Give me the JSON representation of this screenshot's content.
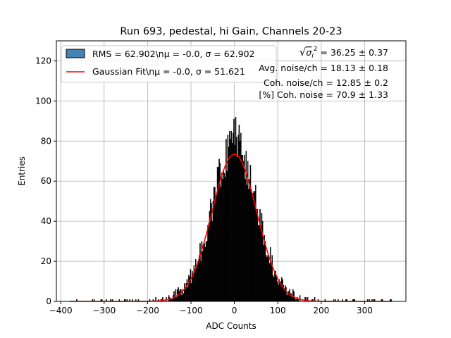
{
  "chart_data": {
    "type": "bar",
    "title": "Run 693, pedestal, hi Gain, Channels 20-23",
    "xlabel": "ADC Counts",
    "ylabel": "Entries",
    "xlim": [
      -410,
      395
    ],
    "ylim": [
      0,
      130
    ],
    "xticks": [
      -400,
      -300,
      -200,
      -100,
      0,
      100,
      200,
      300
    ],
    "xtick_labels": [
      "−400",
      "−300",
      "−200",
      "−100",
      "0",
      "100",
      "200",
      "300"
    ],
    "yticks": [
      0,
      20,
      40,
      60,
      80,
      100,
      120
    ],
    "ytick_labels": [
      "0",
      "20",
      "40",
      "60",
      "80",
      "100",
      "120"
    ],
    "grid": true,
    "legend_position": "top-left",
    "legend": [
      {
        "label": "RMS = 62.902\\n$\\mu$ = -0.0, $\\sigma$ = 62.902",
        "text": "RMS = 62.902\\nμ = -0.0, σ = 62.902",
        "style": "patch",
        "color": "#4682b4"
      },
      {
        "label": "Gaussian Fit\\n$\\mu$ = -0.0, $\\sigma$ = 51.621",
        "text": "Gaussian Fit\\nμ = -0.0, σ = 51.621",
        "style": "line",
        "color": "#ff0000"
      }
    ],
    "annotations": [
      {
        "id": "total",
        "sqrt_symbol": "√",
        "sigma": "σ",
        "sub": "i",
        "sup": "2",
        "value": " = 36.25 ± 0.37"
      },
      {
        "id": "avg",
        "text": "Avg. noise/ch = 18.13 ± 0.18"
      },
      {
        "id": "coh",
        "text": "Coh. noise/ch = 12.85 ± 0.2"
      },
      {
        "id": "pct",
        "text": "[%] Coh. noise = 70.9 ± 1.33"
      }
    ],
    "histogram": {
      "bin_width": 2,
      "bins_from": -380,
      "bins_to": 364,
      "bar_color": "#000000"
    },
    "series": [
      {
        "name": "Gaussian Fit\\n$\\mu$ = -0.0, $\\sigma$ = 51.621",
        "type": "line",
        "color": "#ff0000",
        "mu": 0.0,
        "sigma": 51.621,
        "amplitude": 73.5
      }
    ],
    "peak_bins": [
      {
        "x": -10,
        "value": 81
      },
      {
        "x": -4,
        "value": 84
      },
      {
        "x": -2,
        "value": 91
      },
      {
        "x": 0,
        "value": 78
      },
      {
        "x": 2,
        "value": 92
      },
      {
        "x": 4,
        "value": 82
      },
      {
        "x": 10,
        "value": 88
      },
      {
        "x": 12,
        "value": 80
      }
    ]
  }
}
